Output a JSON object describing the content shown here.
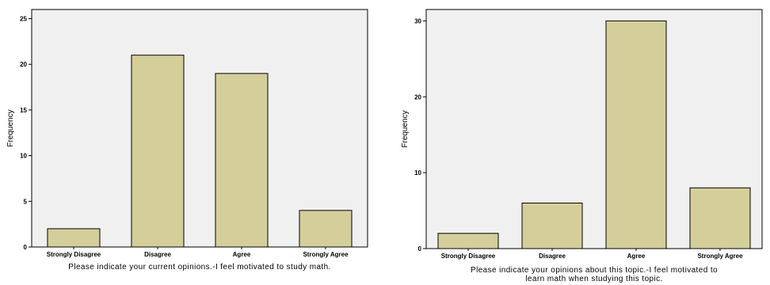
{
  "chart_data": [
    {
      "type": "bar",
      "categories": [
        "Strongly Disagree",
        "Disagree",
        "Agree",
        "Strongly Agree"
      ],
      "values": [
        2,
        21,
        19,
        4
      ],
      "ylabel": "Frequency",
      "xlabel": "Please indicate your current opinions.-I feel motivated to study math.",
      "ylim": [
        0,
        26
      ],
      "yticks": [
        0,
        5,
        10,
        15,
        20,
        25
      ],
      "grid": false,
      "colors": {
        "bar": "#d4cf9a",
        "plot_bg": "#f0f0f0",
        "stroke": "#000000"
      }
    },
    {
      "type": "bar",
      "categories": [
        "Strongly Disagree",
        "Disagree",
        "Agree",
        "Strongly Agree"
      ],
      "values": [
        2,
        6,
        30,
        8
      ],
      "ylabel": "Frequency",
      "xlabel_lines": [
        "Please indicate your opinions about this topic.-I feel motivated to",
        "learn math when studying this topic."
      ],
      "ylim": [
        0,
        31.5
      ],
      "yticks": [
        0,
        10,
        20,
        30
      ],
      "grid": false,
      "colors": {
        "bar": "#d4cf9a",
        "plot_bg": "#f0f0f0",
        "stroke": "#000000"
      }
    }
  ]
}
